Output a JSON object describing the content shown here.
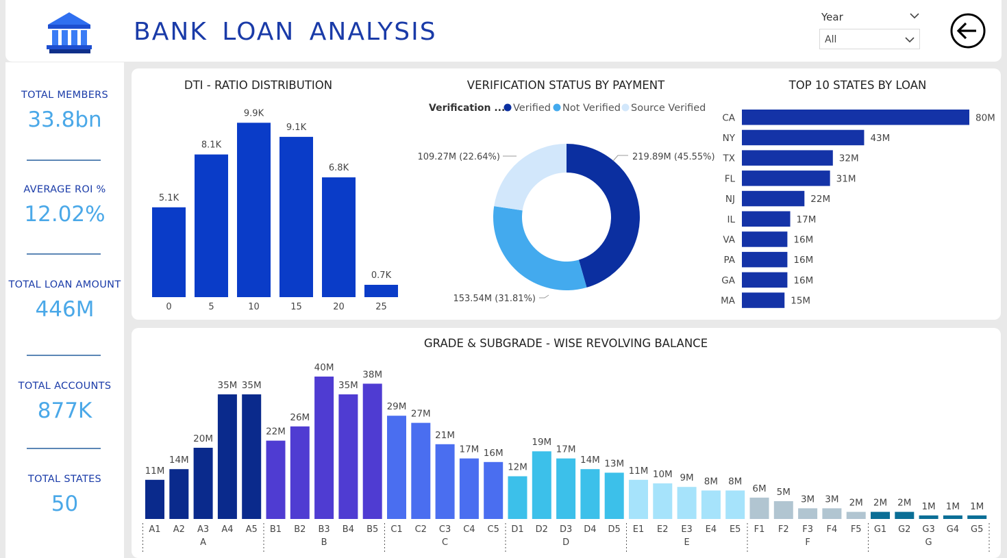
{
  "header": {
    "title": "BANK  LOAN  ANALYSIS",
    "year_filter": {
      "label": "Year",
      "selected": "All"
    }
  },
  "kpis": [
    {
      "label": "TOTAL MEMBERS",
      "value": "33.8bn"
    },
    {
      "label": "AVERAGE ROI %",
      "value": "12.02%"
    },
    {
      "label": "TOTAL LOAN AMOUNT",
      "value": "446M"
    },
    {
      "label": "TOTAL ACCOUNTS",
      "value": "877K"
    },
    {
      "label": "TOTAL STATES",
      "value": "50"
    }
  ],
  "colors": {
    "title_blue": "#1a3ba8",
    "kpi_value": "#4aa8e8",
    "dti_bar": "#0a3cc8",
    "state_bar": "#1433a7",
    "verified": "#0b2fa0",
    "not_verified": "#43aaee",
    "source_verified": "#d2e7fb"
  },
  "chart_data": [
    {
      "type": "bar",
      "title": "DTI - RATIO DISTRIBUTION",
      "categories": [
        "0",
        "5",
        "10",
        "15",
        "20",
        "25"
      ],
      "values": [
        5.1,
        8.1,
        9.9,
        9.1,
        6.8,
        0.7
      ],
      "labels": [
        "5.1K",
        "8.1K",
        "9.9K",
        "9.1K",
        "6.8K",
        "0.7K"
      ],
      "unit": "K",
      "ylim": [
        0,
        11
      ]
    },
    {
      "type": "pie",
      "title": "VERIFICATION STATUS BY PAYMENT",
      "legend_title": "Verification ...",
      "legend_position": "top",
      "slices": [
        {
          "name": "Verified",
          "value": 219.89,
          "label": "219.89M (45.55%)"
        },
        {
          "name": "Not Verified",
          "value": 153.54,
          "label": "153.54M (31.81%)"
        },
        {
          "name": "Source Verified",
          "value": 109.27,
          "label": "109.27M (22.64%)"
        }
      ]
    },
    {
      "type": "bar",
      "orientation": "horizontal",
      "title": "TOP 10 STATES BY LOAN",
      "categories": [
        "CA",
        "NY",
        "TX",
        "FL",
        "NJ",
        "IL",
        "VA",
        "PA",
        "GA",
        "MA"
      ],
      "values": [
        80,
        43,
        32,
        31,
        22,
        17,
        16,
        16,
        16,
        15
      ],
      "labels": [
        "80M",
        "43M",
        "32M",
        "31M",
        "22M",
        "17M",
        "16M",
        "16M",
        "16M",
        "15M"
      ],
      "unit": "M"
    },
    {
      "type": "bar",
      "title": "GRADE & SUBGRADE - WISE REVOLVING BALANCE",
      "groups": [
        {
          "name": "A",
          "color": "#0a2a8c",
          "subgrades": [
            "A1",
            "A2",
            "A3",
            "A4",
            "A5"
          ],
          "values": [
            11,
            14,
            20,
            35,
            35
          ],
          "labels": [
            "11M",
            "14M",
            "20M",
            "35M",
            "35M"
          ]
        },
        {
          "name": "B",
          "color": "#4f3cd2",
          "subgrades": [
            "B1",
            "B2",
            "B3",
            "B4",
            "B5"
          ],
          "values": [
            22,
            26,
            40,
            35,
            38
          ],
          "labels": [
            "22M",
            "26M",
            "40M",
            "35M",
            "38M"
          ]
        },
        {
          "name": "C",
          "color": "#4a6ef0",
          "subgrades": [
            "C1",
            "C2",
            "C3",
            "C4",
            "C5"
          ],
          "values": [
            29,
            27,
            21,
            17,
            16
          ],
          "labels": [
            "29M",
            "27M",
            "21M",
            "17M",
            "16M"
          ]
        },
        {
          "name": "D",
          "color": "#3cc0ea",
          "subgrades": [
            "D1",
            "D2",
            "D3",
            "D4",
            "D5"
          ],
          "values": [
            12,
            19,
            17,
            14,
            13
          ],
          "labels": [
            "12M",
            "19M",
            "17M",
            "14M",
            "13M"
          ]
        },
        {
          "name": "E",
          "color": "#a6e3fb",
          "subgrades": [
            "E1",
            "E2",
            "E3",
            "E4",
            "E5"
          ],
          "values": [
            11,
            10,
            9,
            8,
            8
          ],
          "labels": [
            "11M",
            "10M",
            "9M",
            "8M",
            "8M"
          ]
        },
        {
          "name": "F",
          "color": "#b1c5d1",
          "subgrades": [
            "F1",
            "F2",
            "F3",
            "F4",
            "F5"
          ],
          "values": [
            6,
            5,
            3,
            3,
            2
          ],
          "labels": [
            "6M",
            "5M",
            "3M",
            "3M",
            "2M"
          ]
        },
        {
          "name": "G",
          "color": "#0a6e96",
          "subgrades": [
            "G1",
            "G2",
            "G3",
            "G4",
            "G5"
          ],
          "values": [
            2,
            2,
            1,
            1,
            1
          ],
          "labels": [
            "2M",
            "2M",
            "1M",
            "1M",
            "1M"
          ]
        }
      ],
      "unit": "M",
      "ylim": [
        0,
        40
      ]
    }
  ]
}
